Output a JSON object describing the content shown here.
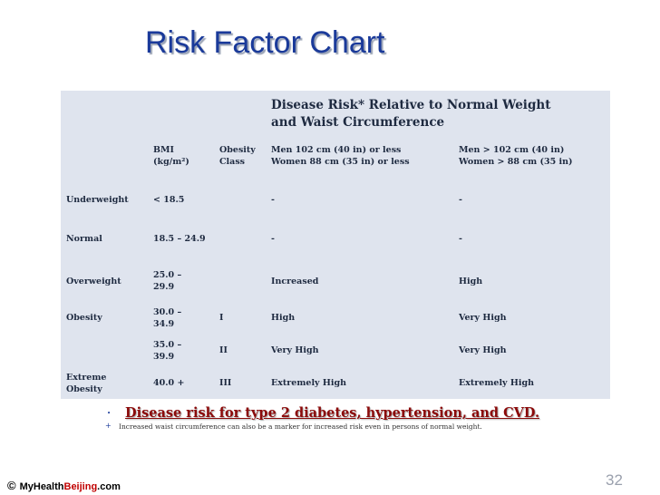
{
  "title": "Risk Factor Chart",
  "table": {
    "header": {
      "disease_risk": [
        "Disease Risk* Relative to Normal Weight",
        "and Waist Circumference"
      ],
      "columns": [
        null,
        [
          "BMI",
          "(kg/m²)"
        ],
        [
          "Obesity",
          "Class"
        ],
        [
          "Men 102 cm (40 in) or less",
          "Women 88 cm (35 in) or less"
        ],
        [
          "Men > 102 cm (40 in)",
          "Women > 88 cm (35 in)"
        ]
      ]
    },
    "rows": [
      [
        [
          "Underweight"
        ],
        [
          "< 18.5"
        ],
        null,
        [
          "-"
        ],
        [
          "-"
        ]
      ],
      [
        [
          "Normal"
        ],
        [
          "18.5 – 24.9"
        ],
        null,
        [
          "-"
        ],
        [
          "-"
        ]
      ],
      [
        [
          "Overweight"
        ],
        [
          "25.0 –",
          "29.9"
        ],
        null,
        [
          "Increased"
        ],
        [
          "High"
        ]
      ],
      [
        [
          "Obesity"
        ],
        [
          "30.0 –",
          "34.9"
        ],
        [
          "I"
        ],
        [
          "High"
        ],
        [
          "Very High"
        ]
      ],
      [
        null,
        [
          "35.0 –",
          "39.9"
        ],
        [
          "II"
        ],
        [
          "Very High"
        ],
        [
          "Very High"
        ]
      ],
      [
        [
          "Extreme",
          "Obesity"
        ],
        [
          "40.0 +"
        ],
        [
          "III"
        ],
        [
          "Extremely High"
        ],
        [
          "Extremely High"
        ]
      ]
    ]
  },
  "bullets": [
    {
      "marker": "•",
      "text": "Disease risk for type 2 diabetes, hypertension, and CVD."
    },
    {
      "marker": "+",
      "text": "Increased waist circumference can also be a marker for increased risk even in persons of normal weight."
    }
  ],
  "footer": {
    "copyright": "©",
    "parts": [
      "MyHealth",
      "Beijing",
      ".com"
    ]
  },
  "page_number": "32"
}
